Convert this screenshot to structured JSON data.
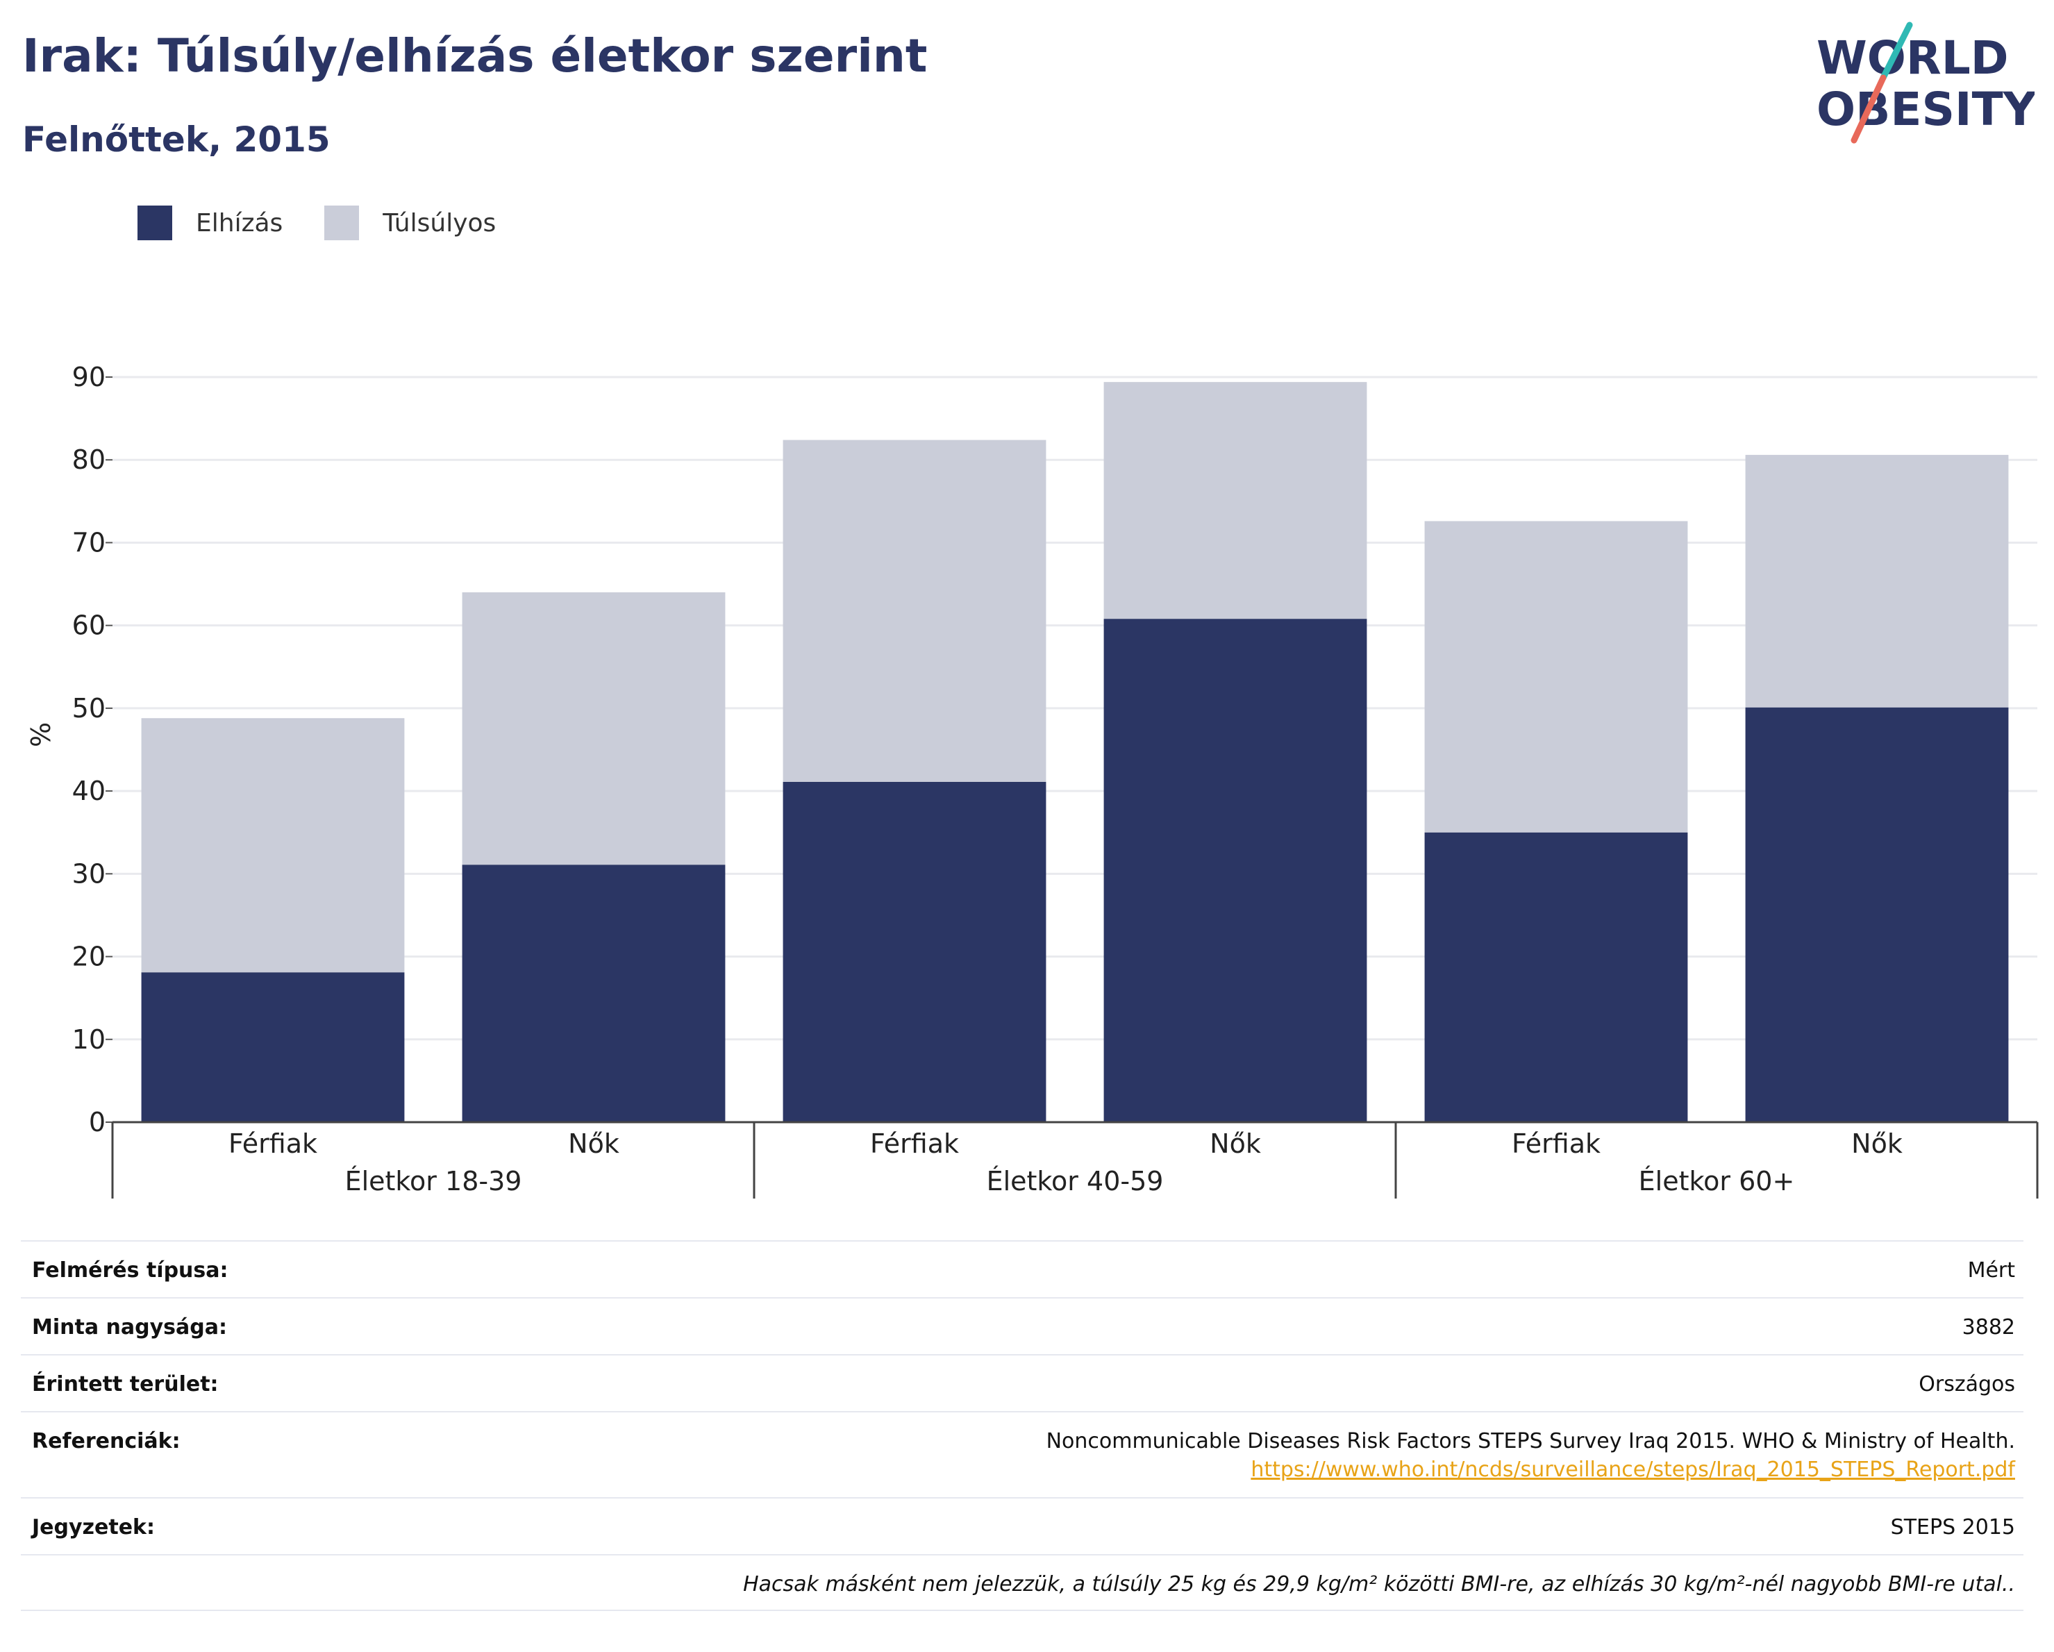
{
  "header": {
    "title": "Irak: Túlsúly/elhízás életkor szerint",
    "subtitle": "Felnőttek, 2015",
    "logo_line1": "WORLD",
    "logo_line2": "OBESITY"
  },
  "colors": {
    "obesity": "#2b3664",
    "overweight": "#cacdd9",
    "title": "#2b3564",
    "link": "#e8a317"
  },
  "legend": [
    {
      "label": "Elhízás",
      "color": "#2b3664"
    },
    {
      "label": "Túlsúlyos",
      "color": "#cacdd9"
    }
  ],
  "chart_data": {
    "type": "bar",
    "stacked": true,
    "ylabel": "%",
    "ylim": [
      0,
      90
    ],
    "yticks": [
      0,
      10,
      20,
      30,
      40,
      50,
      60,
      70,
      80,
      90
    ],
    "categories": [
      "Férfiak",
      "Nők",
      "Férfiak",
      "Nők",
      "Férfiak",
      "Nők"
    ],
    "groups": [
      "Életkor 18-39",
      "Életkor 40-59",
      "Életkor 60+"
    ],
    "series": [
      {
        "name": "Elhízás",
        "values": [
          18.1,
          31.1,
          41.1,
          60.8,
          35.0,
          50.1
        ]
      },
      {
        "name": "Túlsúlyos",
        "values": [
          30.7,
          32.9,
          41.3,
          28.6,
          37.6,
          30.5
        ]
      }
    ],
    "grid": true,
    "legend_position": "top-left"
  },
  "meta": {
    "survey_type_label": "Felmérés típusa:",
    "survey_type_value": "Mért",
    "sample_size_label": "Minta nagysága:",
    "sample_size_value": "3882",
    "area_label": "Érintett terület:",
    "area_value": "Országos",
    "references_label": "Referenciák:",
    "references_value": "Noncommunicable Diseases Risk Factors STEPS Survey Iraq 2015. WHO & Ministry of Health.",
    "references_link": "https://www.who.int/ncds/surveillance/steps/Iraq_2015_STEPS_Report.pdf",
    "notes_label": "Jegyzetek:",
    "notes_value": "STEPS 2015",
    "footnote": "Hacsak másként nem jelezzük, a túlsúly 25 kg és 29,9 kg/m² közötti BMI-re, az elhízás 30 kg/m²-nél nagyobb BMI-re utal.."
  }
}
